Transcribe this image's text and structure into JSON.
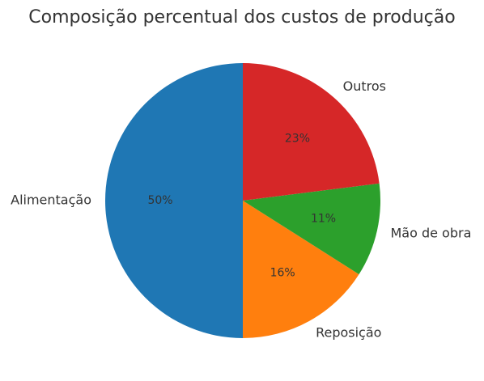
{
  "chart_data": {
    "type": "pie",
    "title": "Composição percentual dos custos de produção",
    "categories": [
      "Alimentação",
      "Reposição",
      "Mão de obra",
      "Outros"
    ],
    "values": [
      50,
      16,
      11,
      23
    ],
    "value_labels": [
      "50%",
      "16%",
      "11%",
      "23%"
    ],
    "colors": [
      "#1f77b4",
      "#ff7f0e",
      "#2ca02c",
      "#d62728"
    ],
    "start_angle_deg": 90,
    "direction": "counterclockwise",
    "legend": "none"
  }
}
